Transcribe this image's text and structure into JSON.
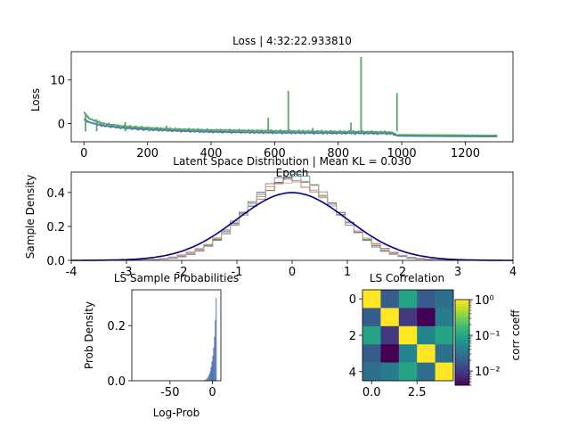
{
  "chart_data": [
    {
      "type": "line",
      "title": "Loss | 4:32:22.933810",
      "xlabel": "Epoch",
      "ylabel": "Loss",
      "xlim": [
        -40,
        1350
      ],
      "ylim": [
        -4.2,
        16.5
      ],
      "xticks": [
        "0",
        "200",
        "400",
        "600",
        "800",
        "1000",
        "1200"
      ],
      "xtick_values": [
        0,
        200,
        400,
        600,
        800,
        1000,
        1200
      ],
      "yticks": [
        "0",
        "10"
      ],
      "ytick_values": [
        0,
        10
      ],
      "series": [
        {
          "color": "#4c72b0",
          "x": [
            0,
            20,
            60,
            120,
            200,
            300,
            400,
            500,
            600,
            700,
            800,
            900,
            970,
            985,
            1000,
            1100,
            1200,
            1300
          ],
          "values": [
            1.0,
            0.2,
            -0.5,
            -1.0,
            -1.4,
            -1.7,
            -1.9,
            -2.0,
            -2.1,
            -2.15,
            -2.2,
            -2.25,
            -2.3,
            -2.8,
            -2.85,
            -2.9,
            -2.95,
            -3.0
          ]
        },
        {
          "color": "#55a868",
          "x": [
            0,
            20,
            60,
            120,
            200,
            300,
            400,
            500,
            600,
            700,
            800,
            900,
            970,
            985,
            1000,
            1100,
            1200,
            1300
          ],
          "values": [
            2.5,
            1.0,
            0.0,
            -0.6,
            -1.0,
            -1.3,
            -1.5,
            -1.6,
            -1.7,
            -1.8,
            -1.85,
            -1.9,
            -2.0,
            -2.6,
            -2.6,
            -2.65,
            -2.7,
            -2.75
          ]
        }
      ],
      "spikes": [
        {
          "x": 5,
          "value": 2.4
        },
        {
          "x": 40,
          "value": 0.9
        },
        {
          "x": 130,
          "value": 0.3
        },
        {
          "x": 205,
          "value": -0.8
        },
        {
          "x": 260,
          "value": -0.5
        },
        {
          "x": 340,
          "value": -1.2
        },
        {
          "x": 495,
          "value": -1.4
        },
        {
          "x": 580,
          "value": 1.3
        },
        {
          "x": 643,
          "value": 7.5
        },
        {
          "x": 720,
          "value": -1.0
        },
        {
          "x": 840,
          "value": 0.2
        },
        {
          "x": 872,
          "value": 15.3
        },
        {
          "x": 985,
          "value": 7.0
        }
      ]
    },
    {
      "type": "histogram",
      "title": "Latent Space Distribution | Mean KL = 0.030",
      "xlabel": "",
      "ylabel": "Sample Density",
      "xlim": [
        -4,
        4
      ],
      "ylim": [
        0,
        0.52
      ],
      "xticks": [
        "-4",
        "-3",
        "-2",
        "-1",
        "0",
        "1",
        "2",
        "3",
        "4"
      ],
      "xtick_values": [
        -4,
        -3,
        -2,
        -1,
        0,
        1,
        2,
        3,
        4
      ],
      "yticks": [
        "0.0",
        "0.2",
        "0.4"
      ],
      "ytick_values": [
        0.0,
        0.2,
        0.4
      ],
      "series_colors": [
        "#4c72b0",
        "#55a868",
        "#c44e52",
        "#8172b2",
        "#ccb974"
      ],
      "series_sigma": [
        0.8,
        0.83,
        0.86,
        0.81,
        0.84
      ],
      "reference_curve": {
        "color": "#00008b",
        "distribution": "standard normal",
        "mean": 0,
        "std": 1
      }
    },
    {
      "type": "histogram",
      "title": "LS Sample Probabilities",
      "xlabel": "Log-Prob",
      "ylabel": "Prob Density",
      "xlim": [
        -95,
        10
      ],
      "ylim": [
        0,
        0.33
      ],
      "xticks": [
        "-50",
        "0"
      ],
      "xtick_values": [
        -50,
        0
      ],
      "yticks": [
        "0.0",
        "0.2"
      ],
      "ytick_values": [
        0.0,
        0.2
      ],
      "color": "#4c72b0",
      "bins_x": [
        -10,
        -9,
        -8,
        -7,
        -6,
        -5,
        -4,
        -3,
        -2,
        -1,
        0,
        1,
        2,
        3,
        4,
        5
      ],
      "bins_y": [
        0.002,
        0.003,
        0.005,
        0.008,
        0.012,
        0.018,
        0.025,
        0.035,
        0.05,
        0.07,
        0.09,
        0.12,
        0.16,
        0.22,
        0.3,
        0.0
      ]
    },
    {
      "type": "heatmap",
      "title": "LS Correlation",
      "xticks": [
        "0.0",
        "2.5"
      ],
      "xtick_values": [
        0,
        2.5
      ],
      "yticks": [
        "0",
        "2",
        "4"
      ],
      "ytick_values": [
        0,
        2,
        4
      ],
      "matrix": [
        [
          1.0,
          0.02,
          0.1,
          0.02,
          0.03
        ],
        [
          0.02,
          1.0,
          0.01,
          0.004,
          0.04
        ],
        [
          0.1,
          0.01,
          1.0,
          0.05,
          0.1
        ],
        [
          0.02,
          0.004,
          0.05,
          1.0,
          0.03
        ],
        [
          0.03,
          0.04,
          0.1,
          0.03,
          1.0
        ]
      ],
      "colorbar_label": "corr coeff",
      "colorbar_scale": "log",
      "colorbar_ticks": [
        "10⁰",
        "10⁻¹",
        "10⁻²"
      ],
      "colorbar_tick_values": [
        1,
        0.1,
        0.01
      ],
      "colorbar_range": [
        0.004,
        1.0
      ]
    }
  ]
}
